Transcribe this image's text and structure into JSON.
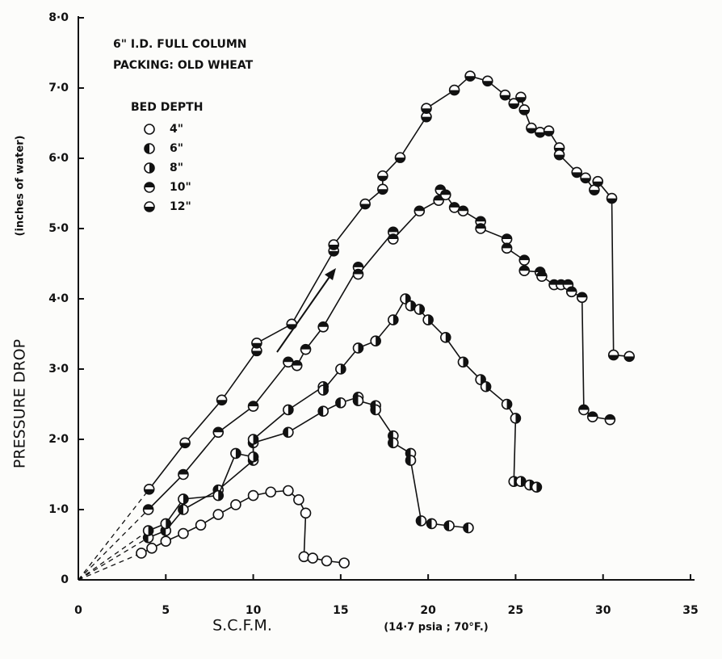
{
  "chart_data": {
    "type": "scatter-line",
    "annotations": [
      "6\" I.D. FULL COLUMN",
      "PACKING: OLD WHEAT"
    ],
    "legend_title": "BED DEPTH",
    "xlabel": "S.C.F.M.",
    "xlabel_note": "(14·7 psia ; 70°F.)",
    "ylabel": "PRESSURE DROP",
    "ylabel_note": "(inches of water)",
    "xlim": [
      0,
      35
    ],
    "xticks": [
      0,
      5,
      10,
      15,
      20,
      25,
      30,
      35
    ],
    "ylim": [
      0,
      8
    ],
    "yticks": [
      0,
      {
        "value": 1,
        "label": "1·0"
      },
      {
        "value": 2,
        "label": "2·0"
      },
      {
        "value": 3,
        "label": "3·0"
      },
      {
        "value": 4,
        "label": "4·0"
      },
      {
        "value": 5,
        "label": "5·0"
      },
      {
        "value": 6,
        "label": "6·0"
      },
      {
        "value": 7,
        "label": "7·0"
      },
      {
        "value": 8,
        "label": "8·0"
      }
    ],
    "series": [
      {
        "name": "4\"",
        "color": "#111111",
        "marker": "open",
        "x": [
          3.6,
          4.2,
          5,
          6,
          7,
          8,
          9,
          10,
          11,
          12,
          12.6,
          13,
          12.9,
          13.4,
          14.2,
          15.2
        ],
        "values": [
          0.38,
          0.45,
          0.55,
          0.66,
          0.78,
          0.93,
          1.07,
          1.2,
          1.25,
          1.27,
          1.14,
          0.95,
          0.33,
          0.31,
          0.27,
          0.24
        ]
      },
      {
        "name": "6\"",
        "color": "#111111",
        "marker": "left",
        "x": [
          4,
          5,
          6,
          8,
          10,
          10,
          12,
          14,
          15,
          16,
          16,
          17,
          17,
          18,
          18,
          19,
          19,
          19.6,
          20.2,
          21.2,
          22.3
        ],
        "values": [
          0.6,
          0.7,
          1.0,
          1.28,
          1.7,
          1.95,
          2.1,
          2.4,
          2.52,
          2.6,
          2.55,
          2.48,
          2.42,
          2.05,
          1.95,
          1.8,
          1.7,
          0.84,
          0.8,
          0.77,
          0.74
        ]
      },
      {
        "name": "8\"",
        "color": "#111111",
        "marker": "right",
        "x": [
          4,
          5,
          6,
          8,
          9,
          10,
          10,
          12,
          14,
          14,
          15,
          16,
          17,
          18,
          18.7,
          19,
          19.5,
          20,
          21,
          22,
          23,
          23.3,
          24.5,
          25,
          24.9,
          25.3,
          25.8,
          26.2
        ],
        "values": [
          0.7,
          0.8,
          1.15,
          1.2,
          1.8,
          1.75,
          2.0,
          2.42,
          2.75,
          2.7,
          3.0,
          3.3,
          3.4,
          3.7,
          4.0,
          3.9,
          3.85,
          3.7,
          3.45,
          3.1,
          2.85,
          2.75,
          2.5,
          2.3,
          1.4,
          1.4,
          1.35,
          1.32
        ]
      },
      {
        "name": "10\"",
        "color": "#111111",
        "marker": "top",
        "x": [
          4,
          6,
          8,
          10,
          12,
          12.5,
          13,
          14,
          16,
          16,
          18,
          18,
          19.5,
          20.6,
          20.7,
          21,
          21.5,
          22,
          23,
          23,
          24.5,
          24.5,
          25.5,
          25.5,
          26.4,
          26.5,
          27.2,
          27.6,
          28,
          28.2,
          28.8,
          28.9,
          29.4,
          30.4
        ],
        "values": [
          1.0,
          1.5,
          2.1,
          2.47,
          3.1,
          3.05,
          3.28,
          3.6,
          4.45,
          4.35,
          4.95,
          4.85,
          5.25,
          5.4,
          5.55,
          5.48,
          5.3,
          5.25,
          5.1,
          5.0,
          4.85,
          4.72,
          4.55,
          4.4,
          4.38,
          4.32,
          4.2,
          4.2,
          4.2,
          4.1,
          4.02,
          2.42,
          2.32,
          2.28
        ]
      },
      {
        "name": "12\"",
        "color": "#111111",
        "marker": "bottom",
        "x": [
          4.05,
          6.1,
          8.2,
          10.2,
          10.2,
          12.2,
          14.6,
          14.6,
          16.4,
          17.4,
          17.4,
          18.4,
          19.9,
          19.9,
          21.5,
          22.4,
          23.4,
          24.4,
          24.9,
          25.3,
          25.5,
          25.9,
          26.4,
          26.9,
          27.5,
          27.5,
          28.5,
          29,
          29.5,
          29.7,
          30.5,
          30.6,
          31.5
        ],
        "values": [
          1.29,
          1.95,
          2.56,
          3.26,
          3.37,
          3.64,
          4.68,
          4.77,
          5.35,
          5.56,
          5.75,
          6.01,
          6.59,
          6.71,
          6.97,
          7.17,
          7.1,
          6.9,
          6.78,
          6.87,
          6.69,
          6.43,
          6.37,
          6.39,
          6.15,
          6.05,
          5.8,
          5.72,
          5.55,
          5.67,
          5.43,
          3.2,
          3.18
        ]
      }
    ]
  }
}
